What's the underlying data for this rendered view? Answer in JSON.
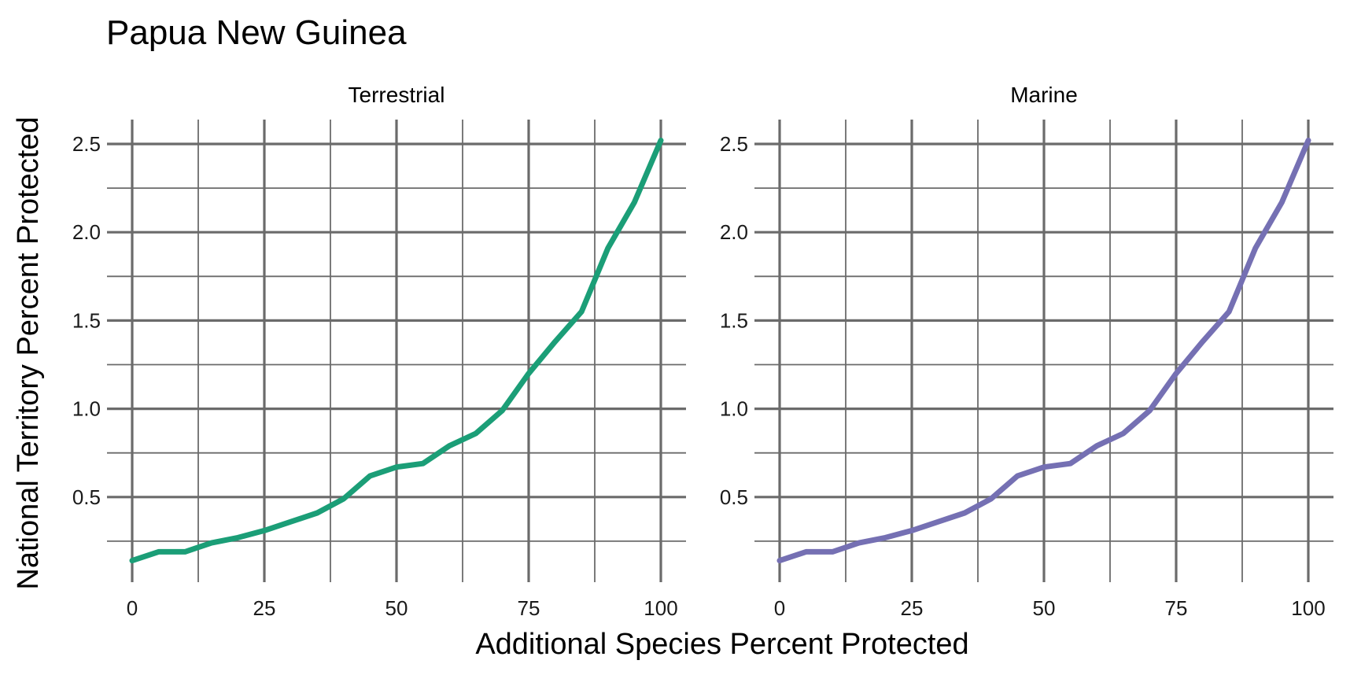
{
  "chart_data": {
    "type": "line",
    "title": "Papua New Guinea",
    "xlabel": "Additional Species Percent Protected",
    "ylabel": "National Territory Percent Protected",
    "xlim": [
      0,
      100
    ],
    "ylim": [
      0.1,
      2.5
    ],
    "xticks": [
      0,
      25,
      50,
      75,
      100
    ],
    "yticks": [
      0.5,
      1.0,
      1.5,
      2.0,
      2.5
    ],
    "ytick_labels": [
      "0.5",
      "1.0",
      "1.5",
      "2.0",
      "2.5"
    ],
    "grid": true,
    "panels": [
      {
        "name": "Terrestrial",
        "color": "#1b9e77",
        "x": [
          0,
          5,
          10,
          15,
          20,
          25,
          30,
          35,
          40,
          45,
          50,
          55,
          60,
          65,
          70,
          75,
          80,
          85,
          90,
          95,
          100
        ],
        "y": [
          0.14,
          0.19,
          0.19,
          0.24,
          0.27,
          0.31,
          0.36,
          0.41,
          0.49,
          0.62,
          0.67,
          0.69,
          0.79,
          0.86,
          0.99,
          1.2,
          1.38,
          1.55,
          1.91,
          2.17,
          2.52
        ]
      },
      {
        "name": "Marine",
        "color": "#7570b3",
        "x": [
          0,
          5,
          10,
          15,
          20,
          25,
          30,
          35,
          40,
          45,
          50,
          55,
          60,
          65,
          70,
          75,
          80,
          85,
          90,
          95,
          100
        ],
        "y": [
          0.14,
          0.19,
          0.19,
          0.24,
          0.27,
          0.31,
          0.36,
          0.41,
          0.49,
          0.62,
          0.67,
          0.69,
          0.79,
          0.86,
          0.99,
          1.2,
          1.38,
          1.55,
          1.91,
          2.17,
          2.52
        ]
      }
    ]
  }
}
